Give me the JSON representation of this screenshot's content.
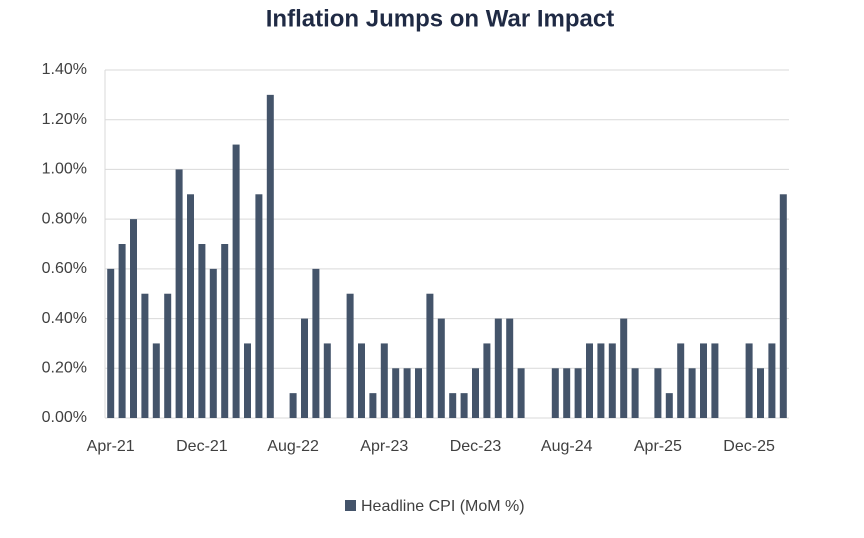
{
  "chart_data": {
    "type": "bar",
    "title": "Inflation Jumps on War Impact",
    "categories": [
      "Apr-21",
      null,
      null,
      null,
      null,
      null,
      null,
      null,
      "Dec-21",
      null,
      null,
      null,
      null,
      null,
      null,
      null,
      "Aug-22",
      null,
      null,
      null,
      null,
      null,
      null,
      null,
      "Apr-23",
      null,
      null,
      null,
      null,
      null,
      null,
      null,
      "Dec-23",
      null,
      null,
      null,
      null,
      null,
      null,
      null,
      "Aug-24",
      null,
      null,
      null,
      null,
      null,
      null,
      null,
      "Apr-25",
      null,
      null,
      null,
      null,
      null,
      null,
      null,
      "Dec-25",
      null,
      null,
      null
    ],
    "series": [
      {
        "name": "Headline CPI (MoM %)",
        "color": "#44546a",
        "values": [
          0.6,
          0.7,
          0.8,
          0.5,
          0.3,
          0.5,
          1.0,
          0.9,
          0.7,
          0.6,
          0.7,
          1.1,
          0.3,
          0.9,
          1.3,
          0,
          0.1,
          0.4,
          0.6,
          0.3,
          0,
          0.5,
          0.3,
          0.1,
          0.3,
          0.2,
          0.2,
          0.2,
          0.5,
          0.4,
          0.1,
          0.1,
          0.2,
          0.3,
          0.4,
          0.4,
          0.2,
          0,
          0,
          0.2,
          0.2,
          0.2,
          0.3,
          0.3,
          0.3,
          0.4,
          0.2,
          0,
          0.2,
          0.1,
          0.3,
          0.2,
          0.3,
          0.3,
          0,
          0,
          0.3,
          0.2,
          0.3,
          0.9
        ]
      }
    ],
    "ylim": [
      0,
      1.4
    ],
    "yticks": [
      {
        "value": 0,
        "label": "0.00%"
      },
      {
        "value": 0.2,
        "label": "0.20%"
      },
      {
        "value": 0.4,
        "label": "0.40%"
      },
      {
        "value": 0.6,
        "label": "0.60%"
      },
      {
        "value": 0.8,
        "label": "0.80%"
      },
      {
        "value": 1.0,
        "label": "1.00%"
      },
      {
        "value": 1.2,
        "label": "1.20%"
      },
      {
        "value": 1.4,
        "label": "1.40%"
      }
    ],
    "grid": true,
    "legend": "bottom"
  }
}
